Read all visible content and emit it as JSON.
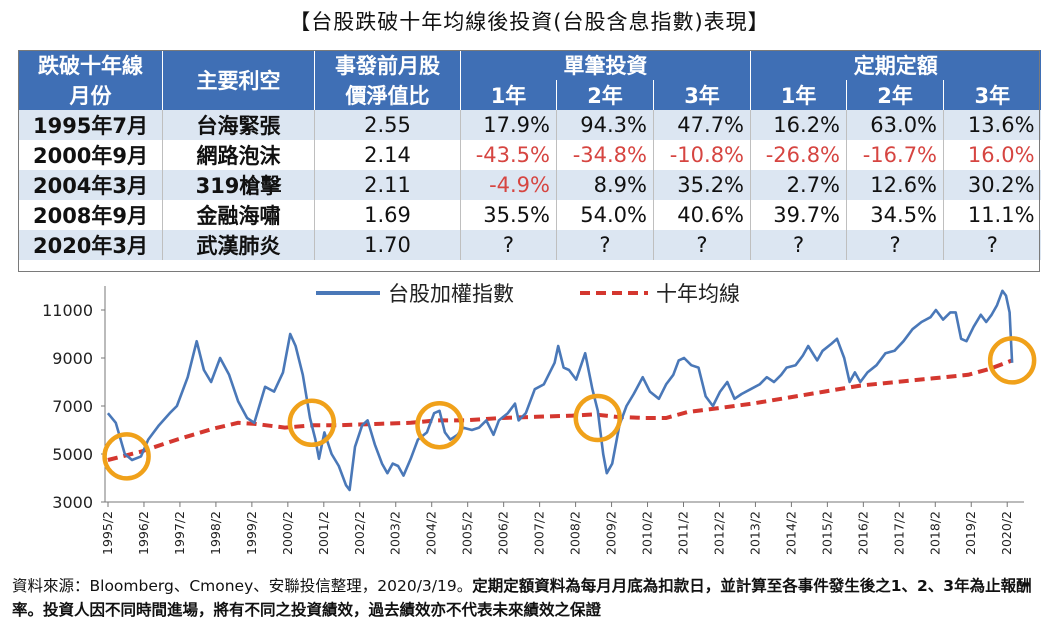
{
  "title": "【台股跌破十年均線後投資(台股含息指數)表現】",
  "table": {
    "headers": {
      "month_l1": "跌破十年線",
      "month_l2": "月份",
      "event": "主要利空",
      "pb_l1": "事發前月股",
      "pb_l2": "價淨值比",
      "lump_group": "單筆投資",
      "dca_group": "定期定額",
      "y1": "1年",
      "y2": "2年",
      "y3": "3年"
    },
    "rows": [
      {
        "month": "1995年7月",
        "event": "台海緊張",
        "pb": "2.55",
        "lump": [
          "17.9%",
          "94.3%",
          "47.7%"
        ],
        "dca": [
          "16.2%",
          "63.0%",
          "13.6%"
        ]
      },
      {
        "month": "2000年9月",
        "event": "網路泡沫",
        "pb": "2.14",
        "lump": [
          "-43.5%",
          "-34.8%",
          "-10.8%"
        ],
        "dca": [
          "-26.8%",
          "-16.7%",
          "16.0%"
        ]
      },
      {
        "month": "2004年3月",
        "event": "319槍擊",
        "pb": "2.11",
        "lump": [
          "-4.9%",
          "8.9%",
          "35.2%"
        ],
        "dca": [
          "2.7%",
          "12.6%",
          "30.2%"
        ]
      },
      {
        "month": "2008年9月",
        "event": "金融海嘯",
        "pb": "1.69",
        "lump": [
          "35.5%",
          "54.0%",
          "40.6%"
        ],
        "dca": [
          "39.7%",
          "34.5%",
          "11.1%"
        ]
      },
      {
        "month": "2020年3月",
        "event": "武漢肺炎",
        "pb": "1.70",
        "lump": [
          "?",
          "?",
          "?"
        ],
        "dca": [
          "?",
          "?",
          "?"
        ]
      }
    ],
    "negative_color": "#d64541",
    "header_color": "#3f6fb5",
    "stripe_color": "#dce6f2"
  },
  "chart_data": {
    "type": "line",
    "legend": [
      "台股加權指數",
      "十年均線"
    ],
    "legend_position": "top-center",
    "colors": {
      "index": "#4a78b8",
      "ma": "#d4372f",
      "circle": "#f0a11a"
    },
    "ylim": [
      3000,
      12000
    ],
    "yticks": [
      "11000",
      "9000",
      "7000",
      "5000",
      "3000"
    ],
    "xticks": [
      "1995/2",
      "1996/2",
      "1997/2",
      "1998/2",
      "1999/2",
      "2000/2",
      "2001/2",
      "2002/2",
      "2003/2",
      "2004/2",
      "2005/2",
      "2006/2",
      "2007/2",
      "2008/2",
      "2009/2",
      "2010/2",
      "2011/2",
      "2012/2",
      "2013/2",
      "2014/2",
      "2015/2",
      "2016/2",
      "2017/2",
      "2018/2",
      "2019/2",
      "2020/2"
    ],
    "series": [
      {
        "name": "台股加權指數",
        "points": [
          [
            1995.08,
            6700
          ],
          [
            1995.3,
            6300
          ],
          [
            1995.55,
            5000
          ],
          [
            1995.75,
            4750
          ],
          [
            1996.0,
            4900
          ],
          [
            1996.2,
            5600
          ],
          [
            1996.5,
            6200
          ],
          [
            1996.8,
            6700
          ],
          [
            1997.0,
            7000
          ],
          [
            1997.3,
            8200
          ],
          [
            1997.55,
            9700
          ],
          [
            1997.75,
            8500
          ],
          [
            1997.95,
            8000
          ],
          [
            1998.2,
            9000
          ],
          [
            1998.45,
            8300
          ],
          [
            1998.7,
            7200
          ],
          [
            1998.95,
            6500
          ],
          [
            1999.15,
            6300
          ],
          [
            1999.45,
            7800
          ],
          [
            1999.7,
            7600
          ],
          [
            1999.95,
            8400
          ],
          [
            2000.15,
            10000
          ],
          [
            2000.3,
            9500
          ],
          [
            2000.5,
            8300
          ],
          [
            2000.7,
            6500
          ],
          [
            2000.85,
            5600
          ],
          [
            2000.95,
            4800
          ],
          [
            2001.1,
            5900
          ],
          [
            2001.3,
            5000
          ],
          [
            2001.5,
            4500
          ],
          [
            2001.7,
            3700
          ],
          [
            2001.8,
            3500
          ],
          [
            2001.95,
            5300
          ],
          [
            2002.15,
            6200
          ],
          [
            2002.3,
            6400
          ],
          [
            2002.5,
            5400
          ],
          [
            2002.7,
            4600
          ],
          [
            2002.85,
            4200
          ],
          [
            2003.0,
            4600
          ],
          [
            2003.15,
            4500
          ],
          [
            2003.3,
            4100
          ],
          [
            2003.5,
            4800
          ],
          [
            2003.7,
            5600
          ],
          [
            2003.95,
            5900
          ],
          [
            2004.15,
            6700
          ],
          [
            2004.3,
            6800
          ],
          [
            2004.45,
            5900
          ],
          [
            2004.6,
            5600
          ],
          [
            2004.8,
            5800
          ],
          [
            2004.95,
            6100
          ],
          [
            2005.2,
            6000
          ],
          [
            2005.4,
            6100
          ],
          [
            2005.6,
            6400
          ],
          [
            2005.8,
            5800
          ],
          [
            2005.95,
            6400
          ],
          [
            2006.2,
            6700
          ],
          [
            2006.4,
            7100
          ],
          [
            2006.5,
            6400
          ],
          [
            2006.7,
            6700
          ],
          [
            2006.95,
            7700
          ],
          [
            2007.2,
            7900
          ],
          [
            2007.5,
            8800
          ],
          [
            2007.6,
            9500
          ],
          [
            2007.75,
            8600
          ],
          [
            2007.9,
            8500
          ],
          [
            2008.1,
            8100
          ],
          [
            2008.35,
            9200
          ],
          [
            2008.55,
            7700
          ],
          [
            2008.7,
            6800
          ],
          [
            2008.85,
            5000
          ],
          [
            2008.95,
            4200
          ],
          [
            2009.1,
            4600
          ],
          [
            2009.3,
            6200
          ],
          [
            2009.5,
            7000
          ],
          [
            2009.7,
            7500
          ],
          [
            2009.95,
            8200
          ],
          [
            2010.15,
            7600
          ],
          [
            2010.4,
            7300
          ],
          [
            2010.6,
            7900
          ],
          [
            2010.8,
            8300
          ],
          [
            2010.95,
            8900
          ],
          [
            2011.1,
            9000
          ],
          [
            2011.3,
            8700
          ],
          [
            2011.5,
            8600
          ],
          [
            2011.7,
            7400
          ],
          [
            2011.9,
            7000
          ],
          [
            2012.1,
            7600
          ],
          [
            2012.3,
            8000
          ],
          [
            2012.5,
            7300
          ],
          [
            2012.7,
            7500
          ],
          [
            2012.95,
            7700
          ],
          [
            2013.2,
            7900
          ],
          [
            2013.4,
            8200
          ],
          [
            2013.6,
            8000
          ],
          [
            2013.8,
            8300
          ],
          [
            2013.95,
            8600
          ],
          [
            2014.2,
            8700
          ],
          [
            2014.4,
            9100
          ],
          [
            2014.55,
            9500
          ],
          [
            2014.8,
            8900
          ],
          [
            2014.95,
            9300
          ],
          [
            2015.2,
            9600
          ],
          [
            2015.35,
            9800
          ],
          [
            2015.55,
            9000
          ],
          [
            2015.7,
            8000
          ],
          [
            2015.85,
            8400
          ],
          [
            2016.0,
            8000
          ],
          [
            2016.2,
            8400
          ],
          [
            2016.45,
            8700
          ],
          [
            2016.7,
            9200
          ],
          [
            2016.95,
            9300
          ],
          [
            2017.2,
            9700
          ],
          [
            2017.45,
            10200
          ],
          [
            2017.7,
            10500
          ],
          [
            2017.95,
            10700
          ],
          [
            2018.1,
            11000
          ],
          [
            2018.3,
            10600
          ],
          [
            2018.5,
            10900
          ],
          [
            2018.65,
            10900
          ],
          [
            2018.8,
            9800
          ],
          [
            2018.95,
            9700
          ],
          [
            2019.15,
            10300
          ],
          [
            2019.35,
            10800
          ],
          [
            2019.5,
            10500
          ],
          [
            2019.65,
            10800
          ],
          [
            2019.8,
            11200
          ],
          [
            2019.95,
            11800
          ],
          [
            2020.05,
            11600
          ],
          [
            2020.15,
            10900
          ],
          [
            2020.22,
            8800
          ]
        ]
      },
      {
        "name": "十年均線",
        "points": [
          [
            1995.08,
            4750
          ],
          [
            1996.0,
            5100
          ],
          [
            1997.0,
            5600
          ],
          [
            1998.0,
            6050
          ],
          [
            1998.7,
            6300
          ],
          [
            1999.2,
            6250
          ],
          [
            2000.0,
            6100
          ],
          [
            2000.8,
            6200
          ],
          [
            2001.5,
            6200
          ],
          [
            2002.5,
            6250
          ],
          [
            2003.5,
            6300
          ],
          [
            2004.2,
            6400
          ],
          [
            2005.0,
            6400
          ],
          [
            2006.0,
            6500
          ],
          [
            2007.0,
            6550
          ],
          [
            2008.0,
            6600
          ],
          [
            2008.6,
            6650
          ],
          [
            2009.2,
            6550
          ],
          [
            2010.0,
            6500
          ],
          [
            2010.6,
            6500
          ],
          [
            2011.2,
            6750
          ],
          [
            2012.0,
            6900
          ],
          [
            2013.0,
            7100
          ],
          [
            2014.0,
            7350
          ],
          [
            2015.0,
            7600
          ],
          [
            2016.0,
            7850
          ],
          [
            2017.0,
            8000
          ],
          [
            2018.0,
            8150
          ],
          [
            2019.0,
            8300
          ],
          [
            2019.6,
            8550
          ],
          [
            2020.22,
            8900
          ]
        ]
      }
    ],
    "highlight_points": [
      [
        1995.6,
        4900
      ],
      [
        2000.75,
        6300
      ],
      [
        2004.3,
        6200
      ],
      [
        2008.7,
        6500
      ],
      [
        2020.22,
        8900
      ]
    ]
  },
  "footer": {
    "part1": "資料來源：Bloomberg、Cmoney、安聯投信整理，2020/3/19。",
    "part2": "定期定額資料為每月月底為扣款日，並計算至各事件發生後之1、2、3年為止報酬率。投資人因不同時間進場，將有不同之投資績效，過去績效亦不代表未來績效之保證"
  }
}
